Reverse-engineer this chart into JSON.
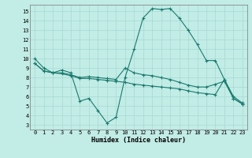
{
  "background_color": "#c2ece6",
  "line_color": "#1a7a6e",
  "grid_color": "#a8d8d2",
  "xlim": [
    -0.5,
    23.5
  ],
  "ylim": [
    2.5,
    15.7
  ],
  "yticks": [
    3,
    4,
    5,
    6,
    7,
    8,
    9,
    10,
    11,
    12,
    13,
    14,
    15
  ],
  "xticks": [
    0,
    1,
    2,
    3,
    4,
    5,
    6,
    7,
    8,
    9,
    10,
    11,
    12,
    13,
    14,
    15,
    16,
    17,
    18,
    19,
    20,
    21,
    22,
    23
  ],
  "xlabel": "Humidex (Indice chaleur)",
  "line1_x": [
    0,
    1,
    2,
    3,
    4,
    5,
    6,
    7,
    8,
    9,
    10,
    11,
    12,
    13,
    14,
    15,
    16,
    17,
    18,
    19,
    20,
    21,
    22,
    23
  ],
  "line1_y": [
    10.0,
    9.0,
    8.5,
    8.8,
    8.5,
    5.5,
    5.8,
    4.5,
    3.2,
    3.8,
    8.0,
    11.0,
    14.3,
    15.3,
    15.2,
    15.3,
    14.3,
    13.0,
    11.5,
    9.8,
    9.8,
    7.8,
    6.0,
    5.3
  ],
  "line2_x": [
    0,
    1,
    2,
    3,
    4,
    5,
    6,
    7,
    8,
    9,
    10,
    11,
    12,
    13,
    14,
    15,
    16,
    17,
    18,
    19,
    20,
    21,
    22,
    23
  ],
  "line2_y": [
    9.5,
    8.7,
    8.5,
    8.5,
    8.3,
    8.0,
    8.1,
    8.0,
    7.9,
    7.8,
    9.0,
    8.5,
    8.3,
    8.2,
    8.0,
    7.8,
    7.5,
    7.2,
    7.0,
    7.0,
    7.3,
    7.6,
    5.8,
    5.2
  ],
  "line3_x": [
    0,
    1,
    2,
    3,
    4,
    5,
    6,
    7,
    8,
    9,
    10,
    11,
    12,
    13,
    14,
    15,
    16,
    17,
    18,
    19,
    20,
    21,
    22,
    23
  ],
  "line3_y": [
    9.5,
    8.7,
    8.5,
    8.4,
    8.2,
    7.9,
    7.9,
    7.8,
    7.7,
    7.6,
    7.5,
    7.3,
    7.2,
    7.1,
    7.0,
    6.9,
    6.8,
    6.6,
    6.4,
    6.3,
    6.2,
    7.8,
    5.8,
    5.2
  ]
}
